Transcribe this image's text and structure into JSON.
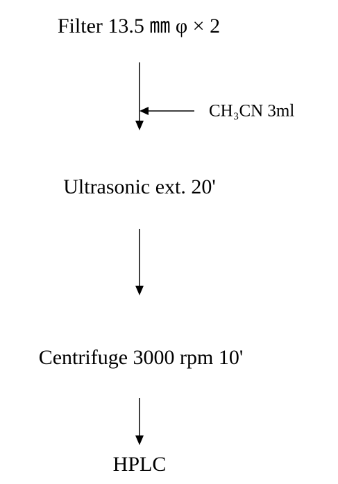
{
  "nodes": [
    {
      "label": "Filter 13.5 ㎜ φ × 2"
    },
    {
      "label": "Ultrasonic ext. 20'"
    },
    {
      "label": "Centrifuge 3000 rpm 10'"
    },
    {
      "label": "HPLC"
    }
  ],
  "side_inputs": [
    {
      "label": "CH₃CN 3ml"
    }
  ]
}
